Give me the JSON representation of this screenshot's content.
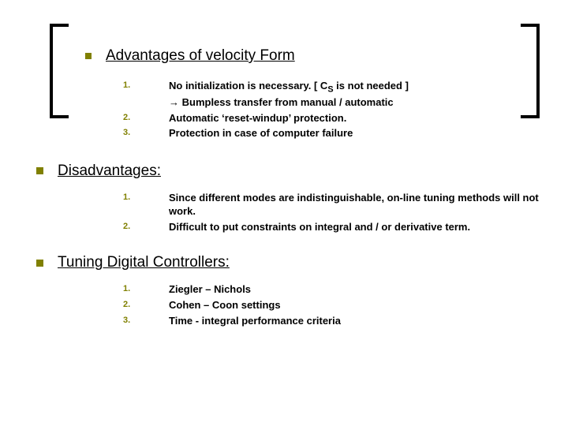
{
  "colors": {
    "bullet": "#808000",
    "text": "#000000",
    "background": "#ffffff",
    "bracket": "#000000"
  },
  "typography": {
    "heading_fontsize": 19,
    "body_fontsize": 13,
    "num_fontsize": 11,
    "font_family": "Verdana"
  },
  "sections": [
    {
      "title": "Advantages of velocity Form",
      "indented": true,
      "items": [
        {
          "num": "1.",
          "text_html": "No initialization is necessary. [ C<sub>S</sub> is not needed ]<br><span class=\"arrow\">→</span> Bumpless transfer from manual / automatic"
        },
        {
          "num": "2.",
          "text": "Automatic ‘reset-windup’ protection."
        },
        {
          "num": "3.",
          "text": "Protection in case of computer failure"
        }
      ]
    },
    {
      "title": "Disadvantages:",
      "indented": false,
      "items": [
        {
          "num": "1.",
          "text": "Since different modes are indistinguishable, on-line tuning methods will not work."
        },
        {
          "num": "2.",
          "text": "Difficult to put constraints on integral and / or derivative term."
        }
      ]
    },
    {
      "title": "Tuning Digital Controllers:",
      "indented": false,
      "items": [
        {
          "num": "1.",
          "text": "Ziegler – Nichols"
        },
        {
          "num": "2.",
          "text": "Cohen – Coon settings"
        },
        {
          "num": "3.",
          "text": "Time  - integral performance criteria"
        }
      ]
    }
  ]
}
